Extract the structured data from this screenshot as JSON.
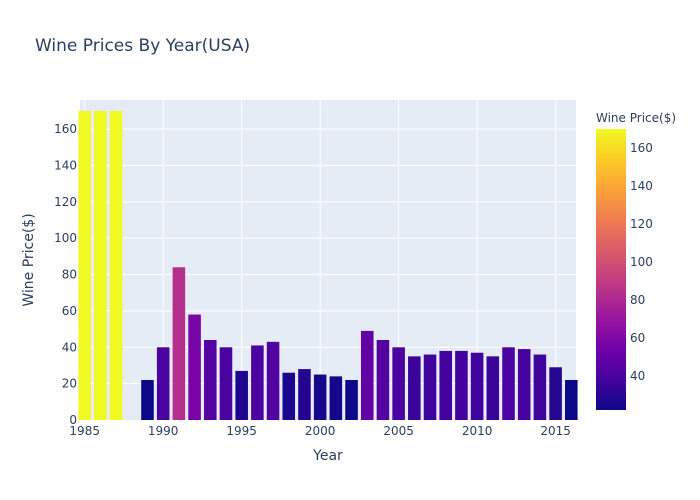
{
  "chart_data": {
    "type": "bar",
    "title": "Wine Prices By Year(USA)",
    "xlabel": "Year",
    "ylabel": "Wine Price($)",
    "xlim": [
      1984.7,
      2016.3
    ],
    "ylim": [
      0,
      176
    ],
    "x_ticks": [
      1985,
      1990,
      1995,
      2000,
      2005,
      2010,
      2015
    ],
    "y_ticks": [
      0,
      20,
      40,
      60,
      80,
      100,
      120,
      140,
      160
    ],
    "grid": true,
    "colorbar": {
      "title": "Wine Price($)",
      "range": [
        22,
        170
      ],
      "ticks": [
        40,
        60,
        80,
        100,
        120,
        140,
        160
      ],
      "colorscale": [
        "#0d0887",
        "#46039f",
        "#7201a8",
        "#9c179e",
        "#bd3786",
        "#d8576b",
        "#ed7953",
        "#fb9f3a",
        "#fdca26",
        "#f0f921"
      ]
    },
    "x": [
      1985,
      1986,
      1987,
      1989,
      1990,
      1991,
      1992,
      1993,
      1994,
      1995,
      1996,
      1997,
      1998,
      1999,
      2000,
      2001,
      2002,
      2003,
      2004,
      2005,
      2006,
      2007,
      2008,
      2009,
      2010,
      2011,
      2012,
      2013,
      2014,
      2015,
      2016
    ],
    "values": [
      170,
      170,
      170,
      22,
      40,
      84,
      58,
      44,
      40,
      27,
      41,
      43,
      26,
      28,
      25,
      24,
      22,
      49,
      44,
      40,
      35,
      36,
      38,
      38,
      37,
      35,
      40,
      39,
      36,
      29,
      22
    ]
  }
}
